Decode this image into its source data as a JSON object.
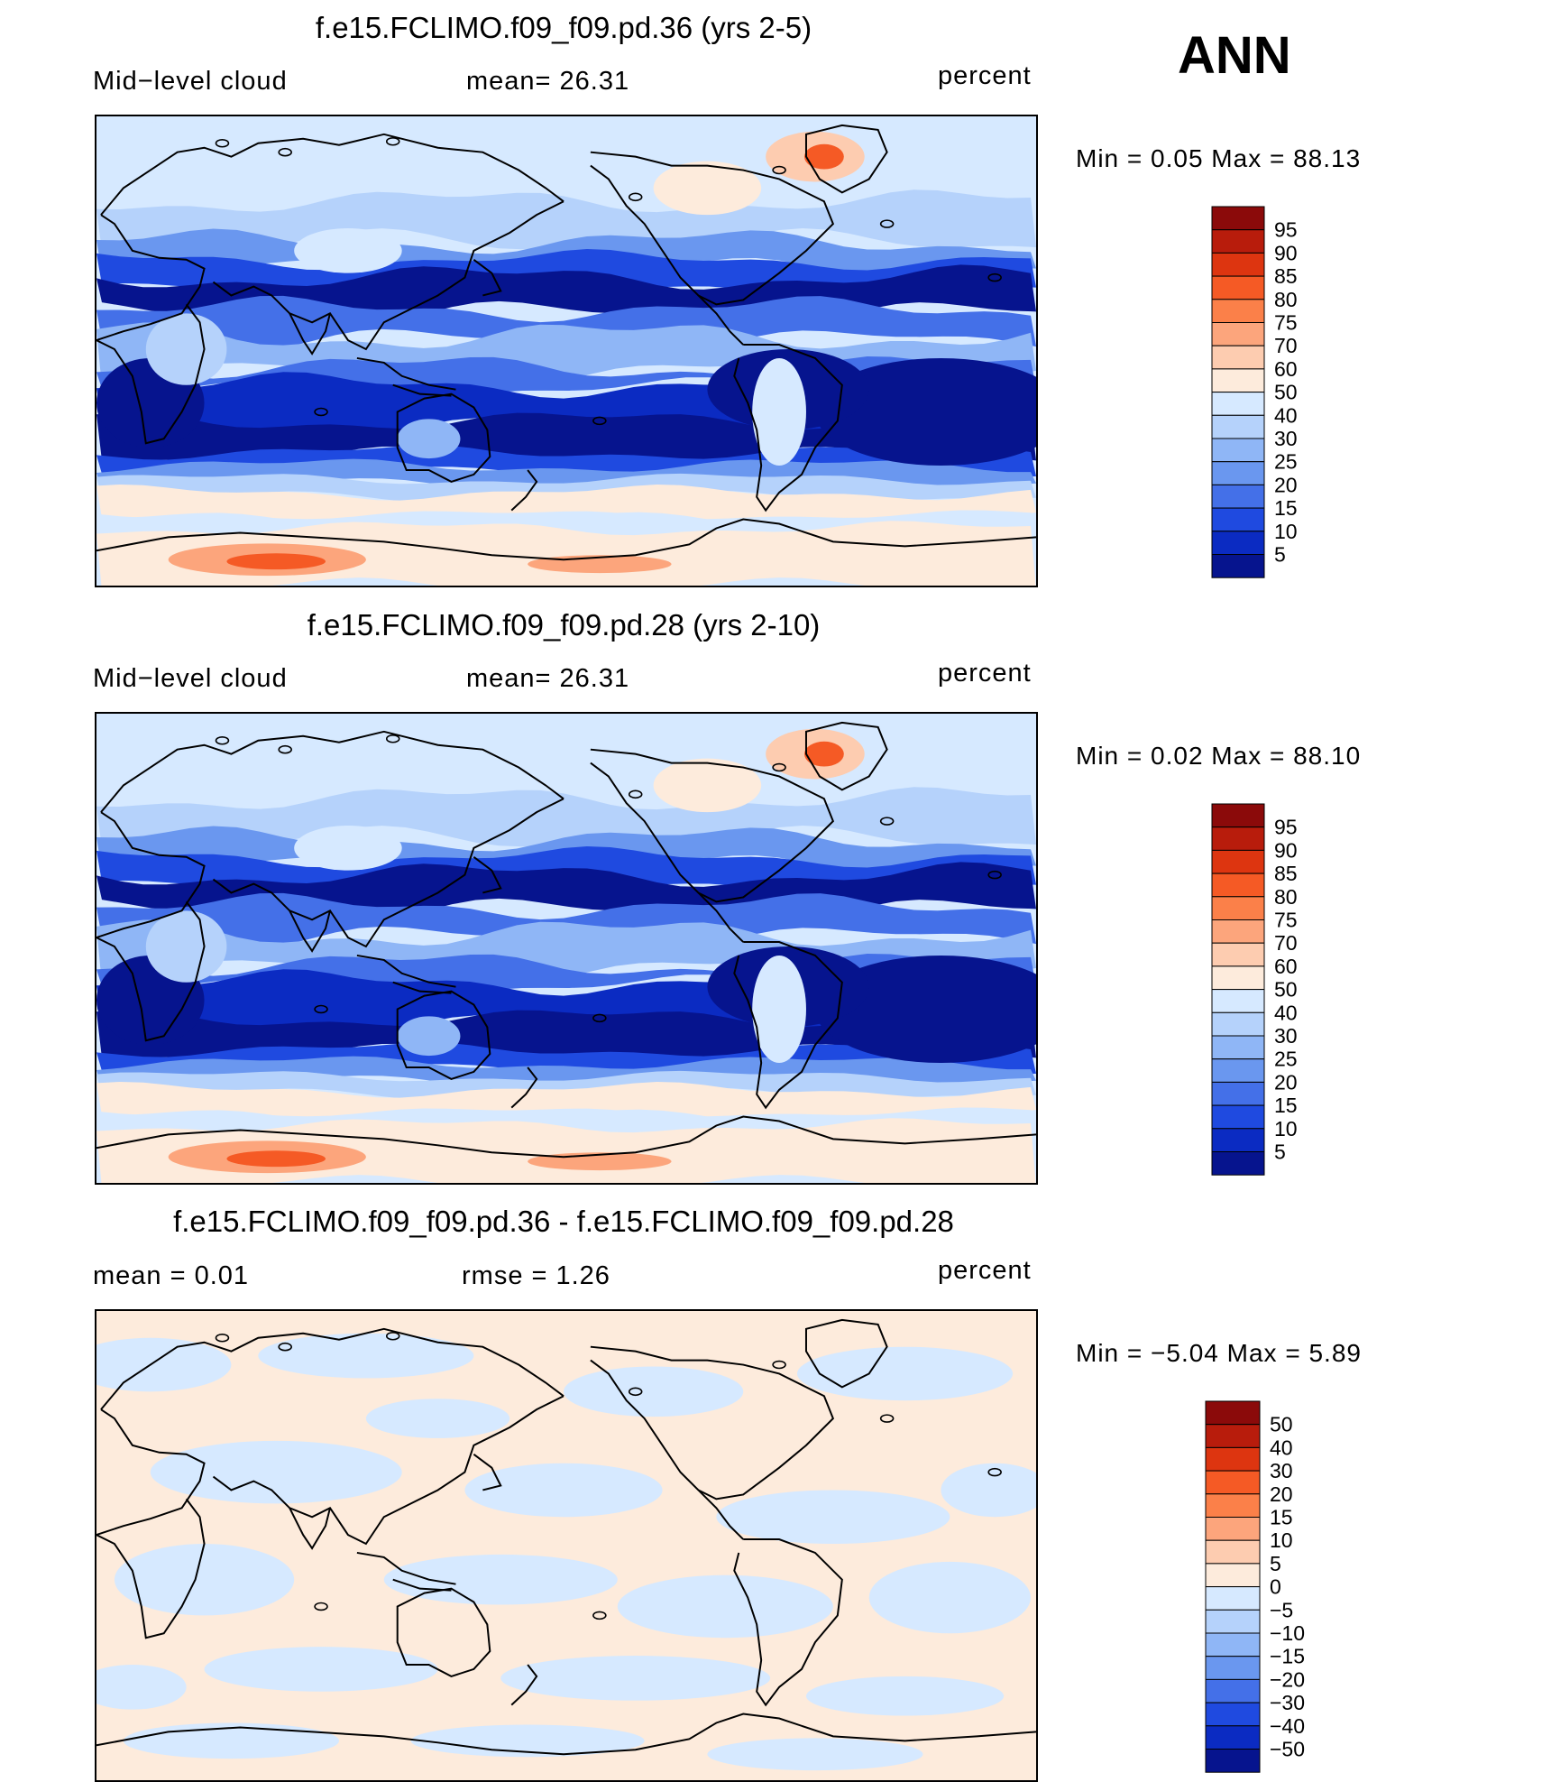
{
  "season": "ANN",
  "panels": [
    {
      "title": "f.e15.FCLIMO.f09_f09.pd.36 (yrs 2-5)",
      "left_label": "Mid−level  cloud",
      "center_label": "mean=   26.31",
      "units": "percent",
      "minmax": "Min  =     0.05  Max  =    88.13",
      "colorbar": "abs"
    },
    {
      "title": "f.e15.FCLIMO.f09_f09.pd.28 (yrs 2-10)",
      "left_label": "Mid−level  cloud",
      "center_label": "mean=   26.31",
      "units": "percent",
      "minmax": "Min  =     0.02  Max  =    88.10",
      "colorbar": "abs"
    },
    {
      "title": "f.e15.FCLIMO.f09_f09.pd.36 - f.e15.FCLIMO.f09_f09.pd.28",
      "left_label": "mean  =     0.01",
      "center_label": "rmse  =     1.26",
      "units": "percent",
      "minmax": "Min  =   −5.04  Max  =     5.89",
      "colorbar": "diff"
    }
  ],
  "chart_data": [
    {
      "type": "heatmap",
      "title": "f.e15.FCLIMO.f09_f09.pd.36 (yrs 2-5)",
      "variable": "Mid-level cloud",
      "units": "percent",
      "mean": 26.31,
      "min": 0.05,
      "max": 88.13,
      "colorbar_levels": [
        5,
        10,
        15,
        20,
        25,
        30,
        40,
        50,
        60,
        70,
        75,
        80,
        85,
        90,
        95
      ]
    },
    {
      "type": "heatmap",
      "title": "f.e15.FCLIMO.f09_f09.pd.28 (yrs 2-10)",
      "variable": "Mid-level cloud",
      "units": "percent",
      "mean": 26.31,
      "min": 0.02,
      "max": 88.1,
      "colorbar_levels": [
        5,
        10,
        15,
        20,
        25,
        30,
        40,
        50,
        60,
        70,
        75,
        80,
        85,
        90,
        95
      ]
    },
    {
      "type": "heatmap",
      "title": "f.e15.FCLIMO.f09_f09.pd.36 - f.e15.FCLIMO.f09_f09.pd.28",
      "units": "percent",
      "mean": 0.01,
      "rmse": 1.26,
      "min": -5.04,
      "max": 5.89,
      "colorbar_levels": [
        -50,
        -40,
        -30,
        -20,
        -15,
        -10,
        -5,
        0,
        5,
        10,
        15,
        20,
        30,
        40,
        50
      ]
    }
  ],
  "colorbars": {
    "abs": {
      "labels": [
        "95",
        "90",
        "85",
        "80",
        "75",
        "70",
        "60",
        "50",
        "40",
        "30",
        "25",
        "20",
        "15",
        "10",
        "5"
      ],
      "colors": [
        "#8b0a0a",
        "#b81c0c",
        "#dd3510",
        "#f55a25",
        "#fb8049",
        "#fca57c",
        "#fdccb0",
        "#fdebdc",
        "#d6e9ff",
        "#b5d2fb",
        "#8fb6f6",
        "#6a97ef",
        "#4470e8",
        "#1f4ae0",
        "#0b2bc2",
        "#06148e"
      ]
    },
    "diff": {
      "labels": [
        "50",
        "40",
        "30",
        "20",
        "15",
        "10",
        "5",
        "0",
        "−5",
        "−10",
        "−15",
        "−20",
        "−30",
        "−40",
        "−50"
      ],
      "colors": [
        "#8b0a0a",
        "#b81c0c",
        "#dd3510",
        "#f55a25",
        "#fb8049",
        "#fca57c",
        "#fdccb0",
        "#fdebdc",
        "#d6e9ff",
        "#b5d2fb",
        "#8fb6f6",
        "#6a97ef",
        "#4470e8",
        "#1f4ae0",
        "#0b2bc2",
        "#06148e"
      ]
    }
  }
}
